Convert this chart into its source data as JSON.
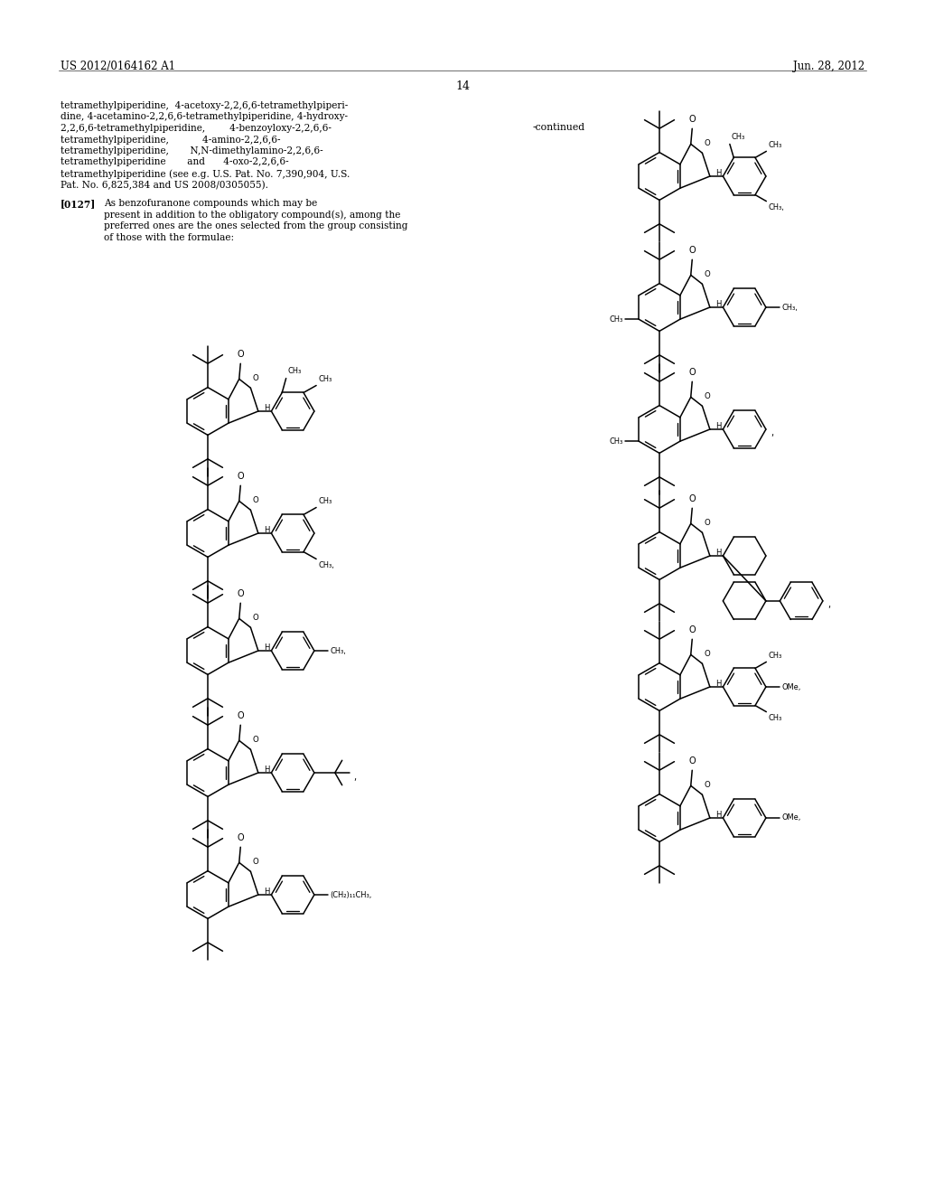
{
  "background_color": "#ffffff",
  "page_number": "14",
  "header_left": "US 2012/0164162 A1",
  "header_right": "Jun. 28, 2012",
  "continued_label": "-continued",
  "left_text_lines": [
    "tetramethylpiperidine,  4-acetoxy-2,2,6,6-tetramethylpiperi-",
    "dine, 4-acetamino-2,2,6,6-tetramethylpiperidine, 4-hydroxy-",
    "2,2,6,6-tetramethylpiperidine,        4-benzoyloxy-2,2,6,6-",
    "tetramethylpiperidine,           4-amino-2,2,6,6-",
    "tetramethylpiperidine,       N,N-dimethylamino-2,2,6,6-",
    "tetramethylpiperidine       and      4-oxo-2,2,6,6-",
    "tetramethylpiperidine (see e.g. U.S. Pat. No. 7,390,904, U.S.",
    "Pat. No. 6,825,384 and US 2008/0305055)."
  ],
  "para_label": "[0127]",
  "para_lines": [
    "As benzofuranone compounds which may be",
    "present in addition to the obligatory compound(s), among the",
    "preferred ones are the ones selected from the group consisting",
    "of those with the formulae:"
  ]
}
